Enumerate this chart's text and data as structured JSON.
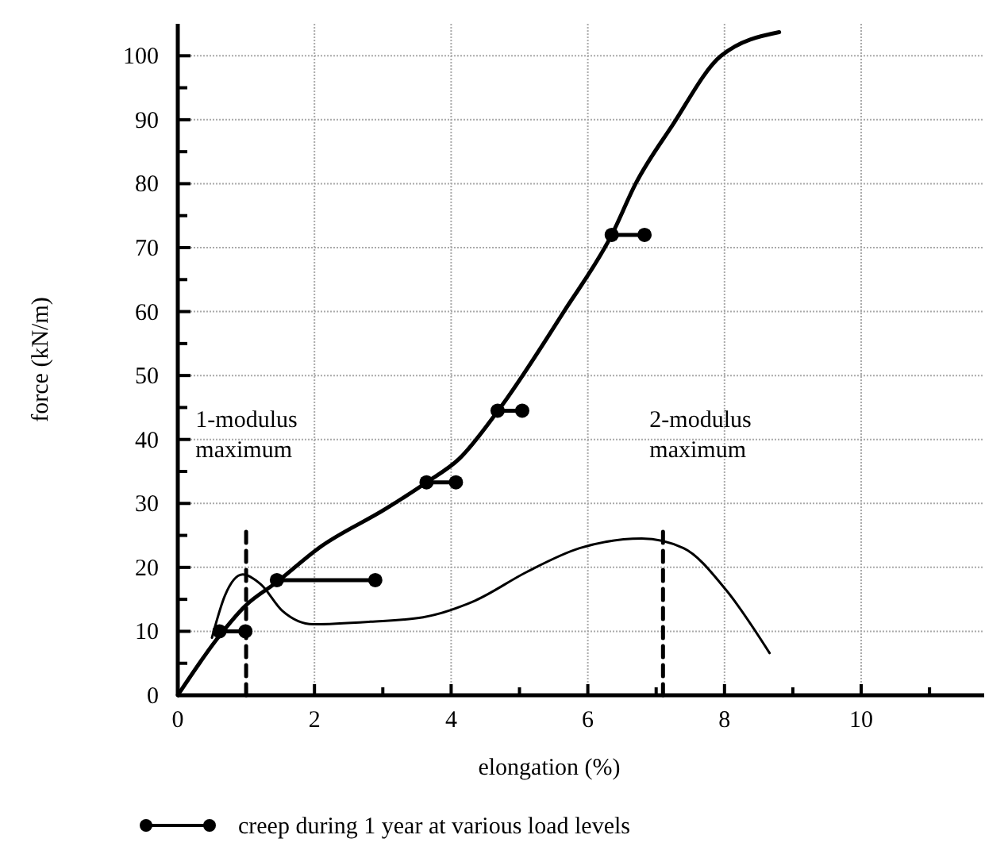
{
  "chart_data": {
    "type": "line",
    "xlabel": "elongation (%)",
    "ylabel": "force (kN/m)",
    "xlim": [
      0,
      11.8
    ],
    "ylim": [
      0,
      105
    ],
    "xticks": [
      0,
      {
        "value": 1,
        "label": null
      },
      2,
      {
        "value": 3,
        "label": null
      },
      4,
      {
        "value": 5,
        "label": null
      },
      6,
      {
        "value": 7,
        "label": null
      },
      8,
      {
        "value": 9,
        "label": null
      },
      10,
      {
        "value": 11,
        "label": null
      }
    ],
    "yticks": [
      0,
      {
        "value": 5,
        "label": null
      },
      10,
      {
        "value": 15,
        "label": null
      },
      20,
      {
        "value": 25,
        "label": null
      },
      30,
      {
        "value": 35,
        "label": null
      },
      40,
      {
        "value": 45,
        "label": null
      },
      50,
      {
        "value": 55,
        "label": null
      },
      60,
      {
        "value": 65,
        "label": null
      },
      70,
      {
        "value": 75,
        "label": null
      },
      80,
      {
        "value": 85,
        "label": null
      },
      90,
      {
        "value": 95,
        "label": null
      },
      100
    ],
    "grid": true,
    "legend": "bottom",
    "series": [
      {
        "color": "#000000",
        "marker": "none",
        "x": [
          0,
          0.61,
          0.99,
          1.45,
          2.06,
          3.05,
          3.64,
          4.12,
          4.68,
          5.65,
          6.35,
          6.7,
          7.23,
          7.95,
          8.8
        ],
        "values": [
          0,
          9.3,
          14,
          17.7,
          23,
          29.2,
          33.3,
          37,
          44.4,
          60,
          72,
          80,
          89,
          100,
          103.7
        ]
      },
      {
        "color": "#000000",
        "marker": "none",
        "x": [
          0.5,
          0.69,
          0.95,
          1.22,
          1.53,
          1.98,
          2.82,
          3.59,
          4.35,
          5.11,
          5.88,
          6.79,
          7.4,
          8.02,
          8.66
        ],
        "values": [
          9,
          15.6,
          18.9,
          17.3,
          13.2,
          11.1,
          11.5,
          12.2,
          14.8,
          19.3,
          23,
          24.5,
          23,
          16.5,
          6.6
        ]
      },
      {
        "color": "#000000",
        "marker": "none",
        "line_style": "dashed",
        "x": [
          1,
          1
        ],
        "values": [
          0,
          26
        ]
      },
      {
        "color": "#000000",
        "marker": "none",
        "line_style": "dashed",
        "x": [
          7.1,
          7.1
        ],
        "values": [
          0,
          26
        ]
      },
      {
        "name": "creep during 1 year at various load levels",
        "color": "#000000",
        "marker": "circle",
        "x": [
          0.61,
          0.99,
          null,
          1.45,
          2.89,
          null,
          3.64,
          4.07,
          null,
          4.68,
          5.04,
          null,
          6.35,
          6.83
        ],
        "values": [
          10,
          10,
          null,
          18,
          18,
          null,
          33.3,
          33.3,
          null,
          44.5,
          44.5,
          null,
          72,
          72
        ]
      }
    ],
    "annotations": [
      "1-modulus maximum",
      "2-modulus maximum"
    ]
  }
}
